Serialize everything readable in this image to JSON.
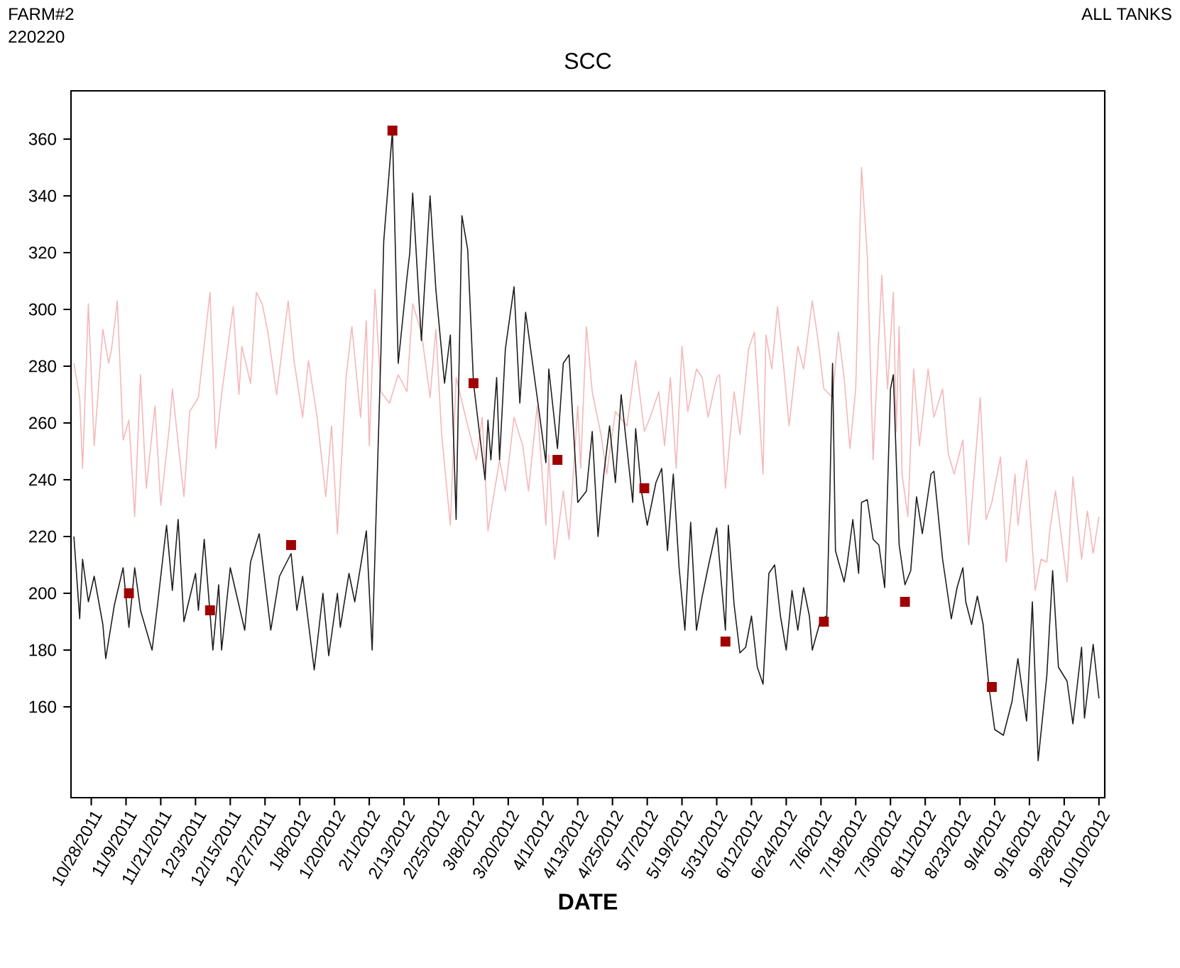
{
  "chart_data": {
    "type": "line",
    "title": "SCC",
    "xlabel": "DATE",
    "annotations": [
      "FARM#2",
      "220220",
      "ALL TANKS"
    ],
    "xlim": [
      "2011-10-21",
      "2012-10-12"
    ],
    "ylim": [
      128,
      377
    ],
    "xticks": [
      {
        "value": "2011-10-28",
        "label": "10/28/2011"
      },
      {
        "value": "2011-11-09",
        "label": "11/9/2011"
      },
      {
        "value": "2011-11-21",
        "label": "11/21/2011"
      },
      {
        "value": "2011-12-03",
        "label": "12/3/2011"
      },
      {
        "value": "2011-12-15",
        "label": "12/15/2011"
      },
      {
        "value": "2011-12-27",
        "label": "12/27/2011"
      },
      {
        "value": "2012-01-08",
        "label": "1/8/2012"
      },
      {
        "value": "2012-01-20",
        "label": "1/20/2012"
      },
      {
        "value": "2012-02-01",
        "label": "2/1/2012"
      },
      {
        "value": "2012-02-13",
        "label": "2/13/2012"
      },
      {
        "value": "2012-02-25",
        "label": "2/25/2012"
      },
      {
        "value": "2012-03-08",
        "label": "3/8/2012"
      },
      {
        "value": "2012-03-20",
        "label": "3/20/2012"
      },
      {
        "value": "2012-04-01",
        "label": "4/1/2012"
      },
      {
        "value": "2012-04-13",
        "label": "4/13/2012"
      },
      {
        "value": "2012-04-25",
        "label": "4/25/2012"
      },
      {
        "value": "2012-05-07",
        "label": "5/7/2012"
      },
      {
        "value": "2012-05-19",
        "label": "5/19/2012"
      },
      {
        "value": "2012-05-31",
        "label": "5/31/2012"
      },
      {
        "value": "2012-06-12",
        "label": "6/12/2012"
      },
      {
        "value": "2012-06-24",
        "label": "6/24/2012"
      },
      {
        "value": "2012-07-06",
        "label": "7/6/2012"
      },
      {
        "value": "2012-07-18",
        "label": "7/18/2012"
      },
      {
        "value": "2012-07-30",
        "label": "7/30/2012"
      },
      {
        "value": "2012-08-11",
        "label": "8/11/2012"
      },
      {
        "value": "2012-08-23",
        "label": "8/23/2012"
      },
      {
        "value": "2012-09-04",
        "label": "9/4/2012"
      },
      {
        "value": "2012-09-16",
        "label": "9/16/2012"
      },
      {
        "value": "2012-09-28",
        "label": "9/28/2012"
      },
      {
        "value": "2012-10-10",
        "label": "10/10/2012"
      }
    ],
    "yticks": [
      160,
      180,
      200,
      220,
      240,
      260,
      280,
      300,
      320,
      340,
      360
    ],
    "marker": "none",
    "series": [
      {
        "color": "#f4b8b8",
        "x": [
          "2011-10-22",
          "2011-10-24",
          "2011-10-25",
          "2011-10-27",
          "2011-10-29",
          "2011-11-01",
          "2011-11-03",
          "2011-11-04",
          "2011-11-06",
          "2011-11-08",
          "2011-11-10",
          "2011-11-12",
          "2011-11-14",
          "2011-11-16",
          "2011-11-19",
          "2011-11-21",
          "2011-11-24",
          "2011-11-25",
          "2011-11-29",
          "2011-12-01",
          "2011-12-04",
          "2011-12-08",
          "2011-12-10",
          "2011-12-12",
          "2011-12-16",
          "2011-12-18",
          "2011-12-19",
          "2011-12-22",
          "2011-12-24",
          "2011-12-26",
          "2011-12-28",
          "2011-12-31",
          "2012-01-04",
          "2012-01-06",
          "2012-01-09",
          "2012-01-11",
          "2012-01-14",
          "2012-01-17",
          "2012-01-19",
          "2012-01-21",
          "2012-01-24",
          "2012-01-26",
          "2012-01-29",
          "2012-01-31",
          "2012-02-01",
          "2012-02-03",
          "2012-02-05",
          "2012-02-08",
          "2012-02-11",
          "2012-02-14",
          "2012-02-16",
          "2012-02-19",
          "2012-02-22",
          "2012-02-24",
          "2012-02-26",
          "2012-02-29",
          "2012-03-02",
          "2012-03-06",
          "2012-03-09",
          "2012-03-11",
          "2012-03-13",
          "2012-03-17",
          "2012-03-19",
          "2012-03-22",
          "2012-03-25",
          "2012-03-27",
          "2012-03-30",
          "2012-04-02",
          "2012-04-03",
          "2012-04-05",
          "2012-04-08",
          "2012-04-10",
          "2012-04-13",
          "2012-04-14",
          "2012-04-16",
          "2012-04-18",
          "2012-04-21",
          "2012-04-23",
          "2012-04-26",
          "2012-04-30",
          "2012-05-03",
          "2012-05-06",
          "2012-05-08",
          "2012-05-11",
          "2012-05-13",
          "2012-05-15",
          "2012-05-17",
          "2012-05-19",
          "2012-05-21",
          "2012-05-24",
          "2012-05-26",
          "2012-05-28",
          "2012-05-31",
          "2012-06-01",
          "2012-06-03",
          "2012-06-06",
          "2012-06-08",
          "2012-06-11",
          "2012-06-13",
          "2012-06-16",
          "2012-06-17",
          "2012-06-19",
          "2012-06-21",
          "2012-06-23",
          "2012-06-25",
          "2012-06-28",
          "2012-06-30",
          "2012-07-03",
          "2012-07-05",
          "2012-07-07",
          "2012-07-10",
          "2012-07-12",
          "2012-07-14",
          "2012-07-16",
          "2012-07-18",
          "2012-07-20",
          "2012-07-22",
          "2012-07-24",
          "2012-07-27",
          "2012-07-29",
          "2012-07-31",
          "2012-08-01",
          "2012-08-02",
          "2012-08-03",
          "2012-08-05",
          "2012-08-07",
          "2012-08-09",
          "2012-08-12",
          "2012-08-14",
          "2012-08-17",
          "2012-08-19",
          "2012-08-21",
          "2012-08-24",
          "2012-08-26",
          "2012-08-30",
          "2012-09-01",
          "2012-09-03",
          "2012-09-06",
          "2012-09-08",
          "2012-09-11",
          "2012-09-12",
          "2012-09-15",
          "2012-09-18",
          "2012-09-20",
          "2012-09-22",
          "2012-09-23",
          "2012-09-25",
          "2012-09-29",
          "2012-10-01",
          "2012-10-04",
          "2012-10-06",
          "2012-10-08",
          "2012-10-10"
        ],
        "values": [
          281,
          269,
          244,
          302,
          252,
          293,
          281,
          286,
          303,
          254,
          261,
          227,
          277,
          237,
          266,
          231,
          259,
          272,
          234,
          264,
          269,
          306,
          251,
          270,
          301,
          270,
          287,
          274,
          306,
          302,
          292,
          270,
          303,
          282,
          262,
          282,
          262,
          234,
          259,
          221,
          276,
          294,
          262,
          296,
          252,
          307,
          271,
          267,
          277,
          271,
          302,
          292,
          269,
          293,
          256,
          224,
          276,
          259,
          247,
          262,
          222,
          247,
          236,
          262,
          252,
          236,
          266,
          224,
          249,
          212,
          236,
          219,
          266,
          244,
          294,
          271,
          256,
          242,
          264,
          259,
          282,
          257,
          262,
          271,
          252,
          276,
          244,
          287,
          264,
          279,
          276,
          262,
          276,
          277,
          237,
          271,
          256,
          286,
          292,
          242,
          291,
          279,
          301,
          281,
          259,
          287,
          279,
          303,
          289,
          272,
          269,
          292,
          276,
          251,
          272,
          350,
          319,
          247,
          312,
          272,
          306,
          257,
          294,
          242,
          227,
          279,
          252,
          279,
          262,
          272,
          249,
          242,
          254,
          217,
          269,
          226,
          232,
          248,
          211,
          242,
          224,
          247,
          201,
          212,
          211,
          222,
          236,
          204,
          241,
          212,
          229,
          214,
          227
        ]
      },
      {
        "color": "#1e1e1e",
        "x": [
          "2011-10-22",
          "2011-10-24",
          "2011-10-25",
          "2011-10-27",
          "2011-10-29",
          "2011-11-01",
          "2011-11-02",
          "2011-11-05",
          "2011-11-08",
          "2011-11-10",
          "2011-11-12",
          "2011-11-14",
          "2011-11-18",
          "2011-11-20",
          "2011-11-23",
          "2011-11-25",
          "2011-11-27",
          "2011-11-29",
          "2011-12-03",
          "2011-12-04",
          "2011-12-06",
          "2011-12-09",
          "2011-12-11",
          "2011-12-12",
          "2011-12-15",
          "2011-12-20",
          "2011-12-22",
          "2011-12-25",
          "2011-12-29",
          "2012-01-01",
          "2012-01-05",
          "2012-01-07",
          "2012-01-09",
          "2012-01-13",
          "2012-01-16",
          "2012-01-18",
          "2012-01-21",
          "2012-01-22",
          "2012-01-25",
          "2012-01-27",
          "2012-01-31",
          "2012-02-02",
          "2012-02-05",
          "2012-02-06",
          "2012-02-09",
          "2012-02-11",
          "2012-02-14",
          "2012-02-15",
          "2012-02-16",
          "2012-02-19",
          "2012-02-22",
          "2012-02-24",
          "2012-02-27",
          "2012-02-29",
          "2012-03-02",
          "2012-03-04",
          "2012-03-06",
          "2012-03-08",
          "2012-03-12",
          "2012-03-13",
          "2012-03-14",
          "2012-03-16",
          "2012-03-17",
          "2012-03-19",
          "2012-03-22",
          "2012-03-24",
          "2012-03-26",
          "2012-03-28",
          "2012-03-30",
          "2012-04-02",
          "2012-04-03",
          "2012-04-06",
          "2012-04-08",
          "2012-04-10",
          "2012-04-13",
          "2012-04-16",
          "2012-04-18",
          "2012-04-20",
          "2012-04-22",
          "2012-04-24",
          "2012-04-26",
          "2012-04-28",
          "2012-05-02",
          "2012-05-03",
          "2012-05-05",
          "2012-05-07",
          "2012-05-10",
          "2012-05-12",
          "2012-05-14",
          "2012-05-16",
          "2012-05-18",
          "2012-05-20",
          "2012-05-22",
          "2012-05-24",
          "2012-05-26",
          "2012-05-28",
          "2012-05-31",
          "2012-06-03",
          "2012-06-04",
          "2012-06-06",
          "2012-06-08",
          "2012-06-10",
          "2012-06-12",
          "2012-06-14",
          "2012-06-16",
          "2012-06-18",
          "2012-06-20",
          "2012-06-22",
          "2012-06-24",
          "2012-06-26",
          "2012-06-28",
          "2012-06-30",
          "2012-07-02",
          "2012-07-03",
          "2012-07-06",
          "2012-07-08",
          "2012-07-09",
          "2012-07-10",
          "2012-07-11",
          "2012-07-14",
          "2012-07-15",
          "2012-07-17",
          "2012-07-19",
          "2012-07-20",
          "2012-07-22",
          "2012-07-24",
          "2012-07-26",
          "2012-07-28",
          "2012-07-30",
          "2012-07-31",
          "2012-08-02",
          "2012-08-04",
          "2012-08-06",
          "2012-08-08",
          "2012-08-10",
          "2012-08-13",
          "2012-08-14",
          "2012-08-17",
          "2012-08-20",
          "2012-08-22",
          "2012-08-24",
          "2012-08-25",
          "2012-08-27",
          "2012-08-29",
          "2012-08-31",
          "2012-09-02",
          "2012-09-04",
          "2012-09-07",
          "2012-09-10",
          "2012-09-12",
          "2012-09-15",
          "2012-09-17",
          "2012-09-19",
          "2012-09-22",
          "2012-09-24",
          "2012-09-26",
          "2012-09-29",
          "2012-10-01",
          "2012-10-04",
          "2012-10-05",
          "2012-10-08",
          "2012-10-10"
        ],
        "values": [
          220,
          191,
          212,
          197,
          206,
          189,
          177,
          196,
          209,
          188,
          209,
          194,
          180,
          197,
          224,
          201,
          226,
          190,
          207,
          194,
          219,
          180,
          203,
          180,
          209,
          187,
          211,
          221,
          187,
          206,
          214,
          194,
          206,
          173,
          200,
          178,
          200,
          188,
          207,
          197,
          222,
          180,
          284,
          324,
          363,
          281,
          311,
          320,
          341,
          289,
          340,
          307,
          274,
          291,
          226,
          333,
          321,
          274,
          240,
          261,
          247,
          276,
          247,
          286,
          308,
          267,
          299,
          284,
          269,
          246,
          279,
          251,
          281,
          284,
          232,
          236,
          257,
          220,
          242,
          259,
          239,
          270,
          232,
          258,
          236,
          224,
          239,
          244,
          215,
          242,
          209,
          187,
          225,
          187,
          199,
          209,
          223,
          187,
          224,
          196,
          179,
          181,
          192,
          174,
          168,
          207,
          210,
          192,
          180,
          201,
          187,
          202,
          192,
          180,
          191,
          192,
          232,
          281,
          215,
          204,
          210,
          226,
          207,
          232,
          233,
          219,
          217,
          202,
          272,
          277,
          217,
          203,
          208,
          234,
          221,
          242,
          243,
          212,
          191,
          202,
          209,
          197,
          189,
          199,
          189,
          167,
          152,
          150,
          162,
          177,
          155,
          197,
          141,
          171,
          208,
          174,
          169,
          154,
          181,
          156,
          182,
          163
        ]
      },
      {
        "type": "scatter",
        "marker": "square",
        "color": "#a00000",
        "x": [
          "2011-11-10",
          "2011-12-08",
          "2012-01-05",
          "2012-02-09",
          "2012-03-08",
          "2012-04-06",
          "2012-05-06",
          "2012-06-03",
          "2012-07-07",
          "2012-08-04",
          "2012-09-03"
        ],
        "values": [
          200,
          194,
          217,
          363,
          274,
          247,
          237,
          183,
          190,
          197,
          167
        ]
      }
    ]
  }
}
